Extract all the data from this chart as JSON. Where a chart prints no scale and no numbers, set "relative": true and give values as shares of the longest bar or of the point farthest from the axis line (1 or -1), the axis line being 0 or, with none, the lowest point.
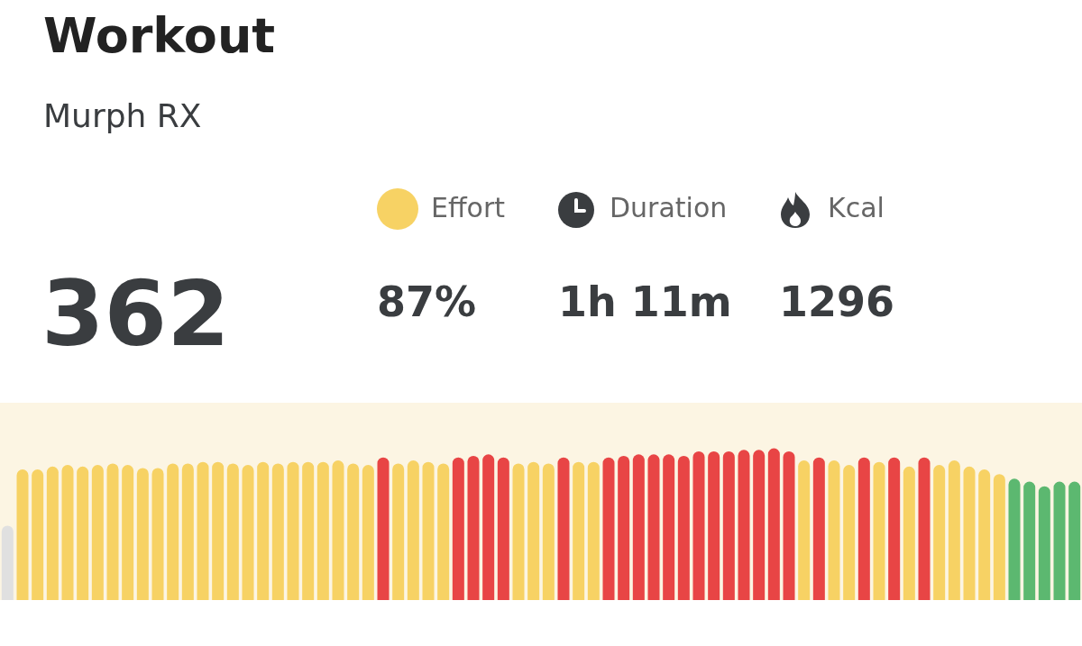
{
  "chart_data": [
    {
      "type": "other",
      "title": "Workout",
      "subtitle": "Murph RX",
      "annotations": [
        "362",
        "Effort",
        "87%",
        "Duration",
        "1h 11m",
        "Kcal",
        "1296"
      ]
    },
    {
      "type": "bar",
      "relative": true,
      "categories": [
        null,
        null,
        null,
        null,
        null,
        null,
        null,
        null,
        null,
        null,
        null,
        null,
        null,
        null,
        null,
        null,
        null,
        null,
        null,
        null,
        null,
        null,
        null,
        null,
        null,
        null,
        null,
        null,
        null,
        null,
        null,
        null,
        null,
        null,
        null,
        null,
        null,
        null,
        null,
        null,
        null,
        null,
        null,
        null,
        null,
        null,
        null,
        null,
        null,
        null,
        null,
        null,
        null,
        null,
        null,
        null,
        null,
        null,
        null,
        null,
        null,
        null,
        null,
        null,
        null,
        null,
        null,
        null,
        null,
        null,
        null,
        null
      ],
      "values": [
        0.49,
        0.86,
        0.86,
        0.88,
        0.89,
        0.88,
        0.89,
        0.9,
        0.89,
        0.87,
        0.87,
        0.9,
        0.9,
        0.91,
        0.91,
        0.9,
        0.89,
        0.91,
        0.9,
        0.91,
        0.91,
        0.91,
        0.92,
        0.9,
        0.89,
        0.94,
        0.9,
        0.92,
        0.91,
        0.9,
        0.94,
        0.95,
        0.96,
        0.94,
        0.9,
        0.91,
        0.9,
        0.94,
        0.91,
        0.91,
        0.94,
        0.95,
        0.96,
        0.96,
        0.96,
        0.95,
        0.98,
        0.98,
        0.98,
        0.99,
        0.99,
        1,
        0.98,
        0.92,
        0.94,
        0.92,
        0.89,
        0.94,
        0.91,
        0.94,
        0.88,
        0.94,
        0.89,
        0.92,
        0.88,
        0.86,
        0.83,
        0.8,
        0.78,
        0.75,
        0.78,
        0.78
      ],
      "colors": [
        "#e0e0e0",
        "#f7d264",
        "#f7d264",
        "#f7d264",
        "#f7d264",
        "#f7d264",
        "#f7d264",
        "#f7d264",
        "#f7d264",
        "#f7d264",
        "#f7d264",
        "#f7d264",
        "#f7d264",
        "#f7d264",
        "#f7d264",
        "#f7d264",
        "#f7d264",
        "#f7d264",
        "#f7d264",
        "#f7d264",
        "#f7d264",
        "#f7d264",
        "#f7d264",
        "#f7d264",
        "#f7d264",
        "#e84545",
        "#f7d264",
        "#f7d264",
        "#f7d264",
        "#f7d264",
        "#e84545",
        "#e84545",
        "#e84545",
        "#e84545",
        "#f7d264",
        "#f7d264",
        "#f7d264",
        "#e84545",
        "#f7d264",
        "#f7d264",
        "#e84545",
        "#e84545",
        "#e84545",
        "#e84545",
        "#e84545",
        "#e84545",
        "#e84545",
        "#e84545",
        "#e84545",
        "#e84545",
        "#e84545",
        "#e84545",
        "#e84545",
        "#f7d264",
        "#e84545",
        "#f7d264",
        "#f7d264",
        "#e84545",
        "#f7d264",
        "#e84545",
        "#f7d264",
        "#e84545",
        "#f7d264",
        "#f7d264",
        "#f7d264",
        "#f7d264",
        "#f7d264",
        "#5cb870",
        "#5cb870",
        "#5cb870",
        "#5cb870",
        "#5cb870"
      ]
    }
  ]
}
